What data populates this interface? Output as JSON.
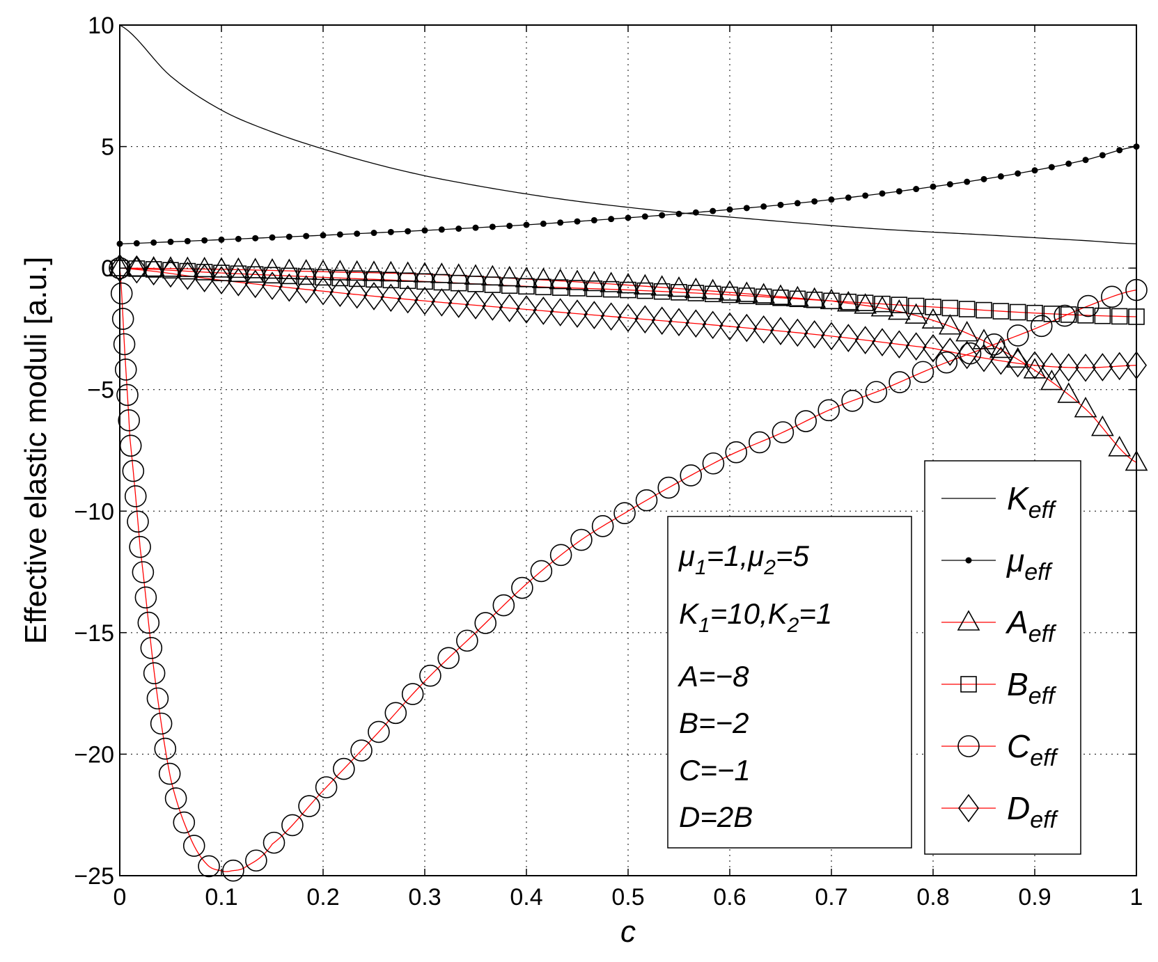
{
  "chart_data": {
    "type": "line",
    "xlabel": "c",
    "ylabel": "Effective elastic moduli [a.u.]",
    "xlim": [
      0,
      1
    ],
    "ylim": [
      -25,
      10
    ],
    "x_ticks": [
      "0",
      "0.1",
      "0.2",
      "0.3",
      "0.4",
      "0.5",
      "0.6",
      "0.7",
      "0.8",
      "0.9",
      "1"
    ],
    "y_ticks": [
      "10",
      "5",
      "0",
      "−5",
      "−10",
      "−15",
      "−20",
      "−25"
    ],
    "grid": true,
    "legend_position": "bottom-right",
    "params": {
      "mu1": "1",
      "mu2": "5",
      "K1": "10",
      "K2": "1",
      "A": "−8",
      "B": "−2",
      "C": "−1",
      "D": "2B"
    },
    "series": [
      {
        "name": "K_eff",
        "base": "K",
        "sub": "eff",
        "color": "#000000",
        "marker": "none",
        "x": [
          0,
          0.05,
          0.1,
          0.15,
          0.2,
          0.25,
          0.3,
          0.35,
          0.4,
          0.45,
          0.5,
          0.55,
          0.6,
          0.65,
          0.7,
          0.75,
          0.8,
          0.85,
          0.9,
          0.95,
          1
        ],
        "y": [
          10,
          7.9,
          6.5,
          5.6,
          4.9,
          4.3,
          3.8,
          3.4,
          3.05,
          2.75,
          2.5,
          2.28,
          2.1,
          1.92,
          1.75,
          1.6,
          1.48,
          1.37,
          1.25,
          1.13,
          1.0
        ]
      },
      {
        "name": "μ_eff",
        "base": "μ",
        "sub": "eff",
        "color": "#000000",
        "marker": "dot",
        "x": [
          0,
          0.05,
          0.1,
          0.15,
          0.2,
          0.25,
          0.3,
          0.35,
          0.4,
          0.45,
          0.5,
          0.55,
          0.6,
          0.65,
          0.7,
          0.75,
          0.8,
          0.85,
          0.9,
          0.95,
          1
        ],
        "y": [
          1.0,
          1.08,
          1.17,
          1.26,
          1.35,
          1.45,
          1.55,
          1.66,
          1.78,
          1.92,
          2.07,
          2.23,
          2.41,
          2.6,
          2.82,
          3.07,
          3.35,
          3.66,
          4.02,
          4.45,
          5.0
        ]
      },
      {
        "name": "A_eff",
        "base": "A",
        "sub": "eff",
        "color": "#ff0000",
        "marker": "triangle",
        "x": [
          0,
          0.1,
          0.2,
          0.3,
          0.4,
          0.5,
          0.6,
          0.7,
          0.75,
          0.8,
          0.85,
          0.9,
          0.95,
          1
        ],
        "y": [
          0,
          -0.05,
          -0.15,
          -0.25,
          -0.45,
          -0.7,
          -1.0,
          -1.35,
          -1.65,
          -2.15,
          -3.0,
          -4.2,
          -5.8,
          -8.0
        ]
      },
      {
        "name": "B_eff",
        "base": "B",
        "sub": "eff",
        "color": "#ff0000",
        "marker": "square",
        "x": [
          0,
          0.1,
          0.2,
          0.3,
          0.4,
          0.5,
          0.6,
          0.7,
          0.8,
          0.9,
          1
        ],
        "y": [
          0,
          -0.2,
          -0.38,
          -0.55,
          -0.75,
          -0.9,
          -1.1,
          -1.35,
          -1.6,
          -1.85,
          -2.0
        ]
      },
      {
        "name": "C_eff",
        "base": "C",
        "sub": "eff",
        "color": "#ff0000",
        "marker": "circle",
        "x": [
          0,
          0.005,
          0.01,
          0.02,
          0.035,
          0.05,
          0.068,
          0.085,
          0.1,
          0.11,
          0.125,
          0.15,
          0.2,
          0.25,
          0.3,
          0.35,
          0.4,
          0.45,
          0.5,
          0.55,
          0.6,
          0.65,
          0.7,
          0.75,
          0.8,
          0.85,
          0.9,
          0.95,
          1
        ],
        "y": [
          0,
          -3.5,
          -7.0,
          -11.5,
          -17.0,
          -21.0,
          -23.3,
          -24.5,
          -24.8,
          -24.8,
          -24.6,
          -23.7,
          -21.5,
          -19.3,
          -17.0,
          -15.0,
          -13.0,
          -11.3,
          -10.0,
          -8.8,
          -7.7,
          -6.8,
          -5.8,
          -5.0,
          -4.1,
          -3.3,
          -2.5,
          -1.6,
          -0.9
        ]
      },
      {
        "name": "D_eff",
        "base": "D",
        "sub": "eff",
        "color": "#ff0000",
        "marker": "diamond",
        "x": [
          0,
          0.1,
          0.2,
          0.3,
          0.4,
          0.5,
          0.6,
          0.7,
          0.8,
          0.85,
          0.9,
          0.95,
          1
        ],
        "y": [
          0,
          -0.5,
          -0.95,
          -1.35,
          -1.7,
          -2.05,
          -2.4,
          -2.8,
          -3.3,
          -3.7,
          -4.0,
          -4.1,
          -4.0
        ]
      }
    ]
  }
}
